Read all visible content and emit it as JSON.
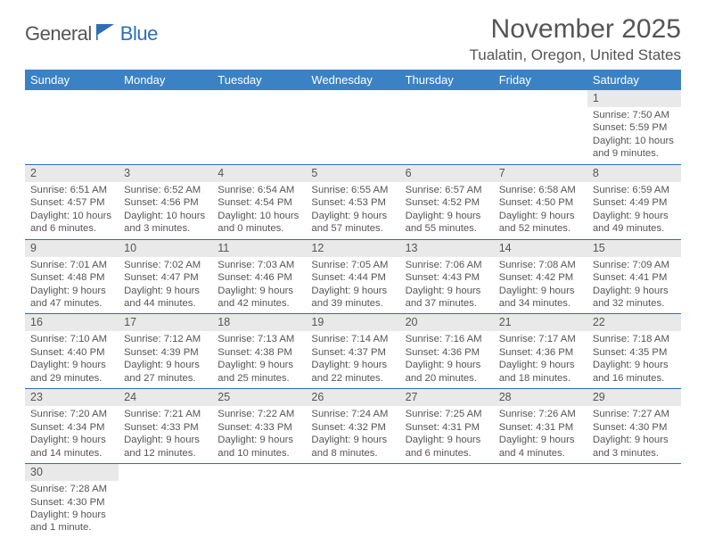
{
  "page": {
    "background_color": "#ffffff",
    "text_color": "#555555"
  },
  "logo": {
    "text1": "General",
    "text2": "Blue",
    "flag_color": "#2d6fb4"
  },
  "title": "November 2025",
  "location": "Tualatin, Oregon, United States",
  "header_bar": {
    "background_color": "#3b82c4",
    "text_color": "#ffffff"
  },
  "daynum_bar": {
    "background_color": "#e9e9e9",
    "text_color": "#555555"
  },
  "row_border_color": "#2d6fb4",
  "days_of_week": [
    "Sunday",
    "Monday",
    "Tuesday",
    "Wednesday",
    "Thursday",
    "Friday",
    "Saturday"
  ],
  "weeks": [
    [
      {
        "empty": true
      },
      {
        "empty": true
      },
      {
        "empty": true
      },
      {
        "empty": true
      },
      {
        "empty": true
      },
      {
        "empty": true
      },
      {
        "n": "1",
        "sunrise": "Sunrise: 7:50 AM",
        "sunset": "Sunset: 5:59 PM",
        "day1": "Daylight: 10 hours",
        "day2": "and 9 minutes."
      }
    ],
    [
      {
        "n": "2",
        "sunrise": "Sunrise: 6:51 AM",
        "sunset": "Sunset: 4:57 PM",
        "day1": "Daylight: 10 hours",
        "day2": "and 6 minutes."
      },
      {
        "n": "3",
        "sunrise": "Sunrise: 6:52 AM",
        "sunset": "Sunset: 4:56 PM",
        "day1": "Daylight: 10 hours",
        "day2": "and 3 minutes."
      },
      {
        "n": "4",
        "sunrise": "Sunrise: 6:54 AM",
        "sunset": "Sunset: 4:54 PM",
        "day1": "Daylight: 10 hours",
        "day2": "and 0 minutes."
      },
      {
        "n": "5",
        "sunrise": "Sunrise: 6:55 AM",
        "sunset": "Sunset: 4:53 PM",
        "day1": "Daylight: 9 hours",
        "day2": "and 57 minutes."
      },
      {
        "n": "6",
        "sunrise": "Sunrise: 6:57 AM",
        "sunset": "Sunset: 4:52 PM",
        "day1": "Daylight: 9 hours",
        "day2": "and 55 minutes."
      },
      {
        "n": "7",
        "sunrise": "Sunrise: 6:58 AM",
        "sunset": "Sunset: 4:50 PM",
        "day1": "Daylight: 9 hours",
        "day2": "and 52 minutes."
      },
      {
        "n": "8",
        "sunrise": "Sunrise: 6:59 AM",
        "sunset": "Sunset: 4:49 PM",
        "day1": "Daylight: 9 hours",
        "day2": "and 49 minutes."
      }
    ],
    [
      {
        "n": "9",
        "sunrise": "Sunrise: 7:01 AM",
        "sunset": "Sunset: 4:48 PM",
        "day1": "Daylight: 9 hours",
        "day2": "and 47 minutes."
      },
      {
        "n": "10",
        "sunrise": "Sunrise: 7:02 AM",
        "sunset": "Sunset: 4:47 PM",
        "day1": "Daylight: 9 hours",
        "day2": "and 44 minutes."
      },
      {
        "n": "11",
        "sunrise": "Sunrise: 7:03 AM",
        "sunset": "Sunset: 4:46 PM",
        "day1": "Daylight: 9 hours",
        "day2": "and 42 minutes."
      },
      {
        "n": "12",
        "sunrise": "Sunrise: 7:05 AM",
        "sunset": "Sunset: 4:44 PM",
        "day1": "Daylight: 9 hours",
        "day2": "and 39 minutes."
      },
      {
        "n": "13",
        "sunrise": "Sunrise: 7:06 AM",
        "sunset": "Sunset: 4:43 PM",
        "day1": "Daylight: 9 hours",
        "day2": "and 37 minutes."
      },
      {
        "n": "14",
        "sunrise": "Sunrise: 7:08 AM",
        "sunset": "Sunset: 4:42 PM",
        "day1": "Daylight: 9 hours",
        "day2": "and 34 minutes."
      },
      {
        "n": "15",
        "sunrise": "Sunrise: 7:09 AM",
        "sunset": "Sunset: 4:41 PM",
        "day1": "Daylight: 9 hours",
        "day2": "and 32 minutes."
      }
    ],
    [
      {
        "n": "16",
        "sunrise": "Sunrise: 7:10 AM",
        "sunset": "Sunset: 4:40 PM",
        "day1": "Daylight: 9 hours",
        "day2": "and 29 minutes."
      },
      {
        "n": "17",
        "sunrise": "Sunrise: 7:12 AM",
        "sunset": "Sunset: 4:39 PM",
        "day1": "Daylight: 9 hours",
        "day2": "and 27 minutes."
      },
      {
        "n": "18",
        "sunrise": "Sunrise: 7:13 AM",
        "sunset": "Sunset: 4:38 PM",
        "day1": "Daylight: 9 hours",
        "day2": "and 25 minutes."
      },
      {
        "n": "19",
        "sunrise": "Sunrise: 7:14 AM",
        "sunset": "Sunset: 4:37 PM",
        "day1": "Daylight: 9 hours",
        "day2": "and 22 minutes."
      },
      {
        "n": "20",
        "sunrise": "Sunrise: 7:16 AM",
        "sunset": "Sunset: 4:36 PM",
        "day1": "Daylight: 9 hours",
        "day2": "and 20 minutes."
      },
      {
        "n": "21",
        "sunrise": "Sunrise: 7:17 AM",
        "sunset": "Sunset: 4:36 PM",
        "day1": "Daylight: 9 hours",
        "day2": "and 18 minutes."
      },
      {
        "n": "22",
        "sunrise": "Sunrise: 7:18 AM",
        "sunset": "Sunset: 4:35 PM",
        "day1": "Daylight: 9 hours",
        "day2": "and 16 minutes."
      }
    ],
    [
      {
        "n": "23",
        "sunrise": "Sunrise: 7:20 AM",
        "sunset": "Sunset: 4:34 PM",
        "day1": "Daylight: 9 hours",
        "day2": "and 14 minutes."
      },
      {
        "n": "24",
        "sunrise": "Sunrise: 7:21 AM",
        "sunset": "Sunset: 4:33 PM",
        "day1": "Daylight: 9 hours",
        "day2": "and 12 minutes."
      },
      {
        "n": "25",
        "sunrise": "Sunrise: 7:22 AM",
        "sunset": "Sunset: 4:33 PM",
        "day1": "Daylight: 9 hours",
        "day2": "and 10 minutes."
      },
      {
        "n": "26",
        "sunrise": "Sunrise: 7:24 AM",
        "sunset": "Sunset: 4:32 PM",
        "day1": "Daylight: 9 hours",
        "day2": "and 8 minutes."
      },
      {
        "n": "27",
        "sunrise": "Sunrise: 7:25 AM",
        "sunset": "Sunset: 4:31 PM",
        "day1": "Daylight: 9 hours",
        "day2": "and 6 minutes."
      },
      {
        "n": "28",
        "sunrise": "Sunrise: 7:26 AM",
        "sunset": "Sunset: 4:31 PM",
        "day1": "Daylight: 9 hours",
        "day2": "and 4 minutes."
      },
      {
        "n": "29",
        "sunrise": "Sunrise: 7:27 AM",
        "sunset": "Sunset: 4:30 PM",
        "day1": "Daylight: 9 hours",
        "day2": "and 3 minutes."
      }
    ],
    [
      {
        "n": "30",
        "sunrise": "Sunrise: 7:28 AM",
        "sunset": "Sunset: 4:30 PM",
        "day1": "Daylight: 9 hours",
        "day2": "and 1 minute."
      },
      {
        "empty": true
      },
      {
        "empty": true
      },
      {
        "empty": true
      },
      {
        "empty": true
      },
      {
        "empty": true
      },
      {
        "empty": true
      }
    ]
  ]
}
